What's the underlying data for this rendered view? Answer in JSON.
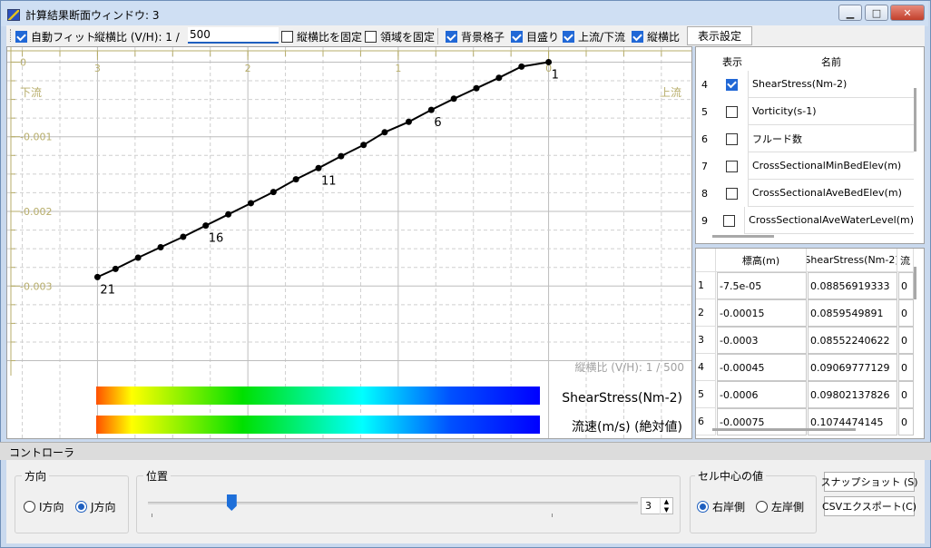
{
  "window": {
    "title": "計算結果断面ウィンドウ: 3"
  },
  "toolbar": {
    "auto_fit_label": "自動フィット",
    "ratio_label": "縦横比 (V/H): 1 /",
    "ratio_value": "500",
    "fix_ratio_label": "縦横比を固定",
    "fix_region_label": "領域を固定",
    "bg_grid_label": "背景格子",
    "scale_label": "目盛り",
    "updown_label": "上流/下流",
    "aspect_label": "縦横比",
    "display_settings_label": "表示設定"
  },
  "plot": {
    "left_label": "下流",
    "right_label": "上流",
    "ratio_caption": "縦横比 (V/H): 1 / 500",
    "colorbar1_label": "ShearStress(Nm-2)",
    "colorbar2_label": "流速(m/s) (絶対値)",
    "point_labels": [
      "1",
      "6",
      "11",
      "16",
      "21"
    ]
  },
  "chart_data": {
    "type": "line",
    "x_ticks": [
      "3",
      "2",
      "1",
      "0"
    ],
    "y_ticks": [
      "0",
      "-0.001",
      "-0.002",
      "-0.003"
    ],
    "xlim": [
      3.6,
      -0.95
    ],
    "ylim": [
      -0.0042,
      0.0002
    ],
    "grid": true,
    "series": [
      {
        "x": [
          0.0,
          0.18,
          0.33,
          0.48,
          0.63,
          0.78,
          0.93,
          1.09,
          1.23,
          1.38,
          1.53,
          1.68,
          1.83,
          1.98,
          2.13,
          2.28,
          2.43,
          2.58,
          2.73,
          2.88,
          3.0
        ],
        "y": [
          0.0,
          -6e-05,
          -0.00021,
          -0.00035,
          -0.00049,
          -0.00064,
          -0.0008,
          -0.00094,
          -0.00111,
          -0.00126,
          -0.00142,
          -0.00157,
          -0.00174,
          -0.00189,
          -0.00204,
          -0.00219,
          -0.00234,
          -0.00248,
          -0.00262,
          -0.00277,
          -0.00288
        ]
      }
    ]
  },
  "variables": {
    "col_show": "表示",
    "col_name": "名前",
    "rows": [
      {
        "index": "4",
        "checked": true,
        "name": "ShearStress(Nm-2)"
      },
      {
        "index": "5",
        "checked": false,
        "name": "Vorticity(s-1)"
      },
      {
        "index": "6",
        "checked": false,
        "name": "フルード数"
      },
      {
        "index": "7",
        "checked": false,
        "name": "CrossSectionalMinBedElev(m)"
      },
      {
        "index": "8",
        "checked": false,
        "name": "CrossSectionalAveBedElev(m)"
      },
      {
        "index": "9",
        "checked": false,
        "name": "CrossSectionalAveWaterLevel(m)"
      }
    ]
  },
  "values": {
    "col_elev": "標高(m)",
    "col_shear": "ShearStress(Nm-2)",
    "col_more": "流",
    "rows": [
      {
        "index": "1",
        "elev": "-7.5e-05",
        "shear": "0.08856919333",
        "more": "0"
      },
      {
        "index": "2",
        "elev": "-0.00015",
        "shear": "0.0859549891",
        "more": "0"
      },
      {
        "index": "3",
        "elev": "-0.0003",
        "shear": "0.08552240622",
        "more": "0"
      },
      {
        "index": "4",
        "elev": "-0.00045",
        "shear": "0.09069777129",
        "more": "0"
      },
      {
        "index": "5",
        "elev": "-0.0006",
        "shear": "0.09802137826",
        "more": "0"
      },
      {
        "index": "6",
        "elev": "-0.00075",
        "shear": "0.1074474145",
        "more": "0"
      }
    ]
  },
  "controller": {
    "title": "コントローラ",
    "direction_label": "方向",
    "i_dir_label": "I方向",
    "j_dir_label": "J方向",
    "position_label": "位置",
    "position_value": "3",
    "slider_fraction": 0.17,
    "cell_value_label": "セル中心の値",
    "right_bank_label": "右岸側",
    "left_bank_label": "左岸側",
    "snapshot_label": "スナップショット (S)",
    "csv_label": "CSVエクスポート(C)"
  }
}
